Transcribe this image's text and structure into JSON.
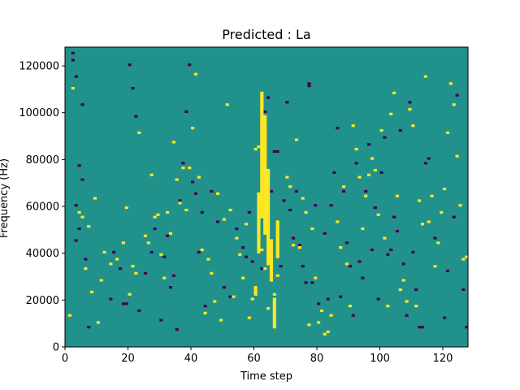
{
  "chart_data": {
    "type": "heatmap",
    "title": "Predicted : La",
    "xlabel": "Time step",
    "ylabel": "Frequency (Hz)",
    "xlim": [
      0,
      128
    ],
    "ylim": [
      0,
      128000
    ],
    "xticks": [
      0,
      20,
      40,
      60,
      80,
      100,
      120
    ],
    "yticks": [
      0,
      20000,
      40000,
      60000,
      80000,
      100000,
      120000
    ],
    "grid": false,
    "legend": "none",
    "colors": {
      "background": "#21918c",
      "low": "#440154",
      "high": "#fde725"
    },
    "rows": 128,
    "low_cells": [
      [
        2,
        125
      ],
      [
        2,
        122
      ],
      [
        3,
        115
      ],
      [
        5,
        103
      ],
      [
        4,
        77
      ],
      [
        5,
        71
      ],
      [
        3,
        60
      ],
      [
        4,
        50
      ],
      [
        3,
        45
      ],
      [
        6,
        37
      ],
      [
        7,
        8
      ],
      [
        14,
        20
      ],
      [
        15,
        40
      ],
      [
        17,
        33
      ],
      [
        18,
        18
      ],
      [
        19,
        18
      ],
      [
        20,
        120
      ],
      [
        21,
        110
      ],
      [
        22,
        98
      ],
      [
        23,
        15
      ],
      [
        25,
        31
      ],
      [
        27,
        40
      ],
      [
        28,
        50
      ],
      [
        30,
        11
      ],
      [
        31,
        38
      ],
      [
        32,
        47
      ],
      [
        33,
        25
      ],
      [
        34,
        30
      ],
      [
        35,
        7
      ],
      [
        36,
        62
      ],
      [
        37,
        78
      ],
      [
        38,
        100
      ],
      [
        39,
        120
      ],
      [
        40,
        70
      ],
      [
        41,
        65
      ],
      [
        42,
        40
      ],
      [
        43,
        57
      ],
      [
        44,
        17
      ],
      [
        46,
        66
      ],
      [
        48,
        53
      ],
      [
        50,
        25
      ],
      [
        52,
        21
      ],
      [
        54,
        50
      ],
      [
        56,
        42
      ],
      [
        57,
        38
      ],
      [
        58,
        57
      ],
      [
        59,
        36
      ],
      [
        60,
        24
      ],
      [
        62,
        33
      ],
      [
        63,
        100
      ],
      [
        64,
        106
      ],
      [
        65,
        66
      ],
      [
        66,
        83
      ],
      [
        67,
        83
      ],
      [
        68,
        34
      ],
      [
        69,
        62
      ],
      [
        70,
        104
      ],
      [
        71,
        58
      ],
      [
        72,
        46
      ],
      [
        73,
        66
      ],
      [
        74,
        43
      ],
      [
        75,
        34
      ],
      [
        76,
        27
      ],
      [
        77,
        111
      ],
      [
        77,
        112
      ],
      [
        78,
        27
      ],
      [
        79,
        60
      ],
      [
        80,
        18
      ],
      [
        81,
        15
      ],
      [
        82,
        48
      ],
      [
        83,
        20
      ],
      [
        84,
        60
      ],
      [
        85,
        74
      ],
      [
        86,
        93
      ],
      [
        87,
        21
      ],
      [
        88,
        66
      ],
      [
        89,
        44
      ],
      [
        90,
        34
      ],
      [
        91,
        13
      ],
      [
        92,
        78
      ],
      [
        93,
        36
      ],
      [
        94,
        29
      ],
      [
        95,
        66
      ],
      [
        96,
        86
      ],
      [
        97,
        41
      ],
      [
        98,
        59
      ],
      [
        99,
        20
      ],
      [
        100,
        74
      ],
      [
        101,
        89
      ],
      [
        102,
        39
      ],
      [
        103,
        41
      ],
      [
        104,
        55
      ],
      [
        105,
        49
      ],
      [
        106,
        92
      ],
      [
        107,
        35
      ],
      [
        108,
        13
      ],
      [
        109,
        104
      ],
      [
        110,
        40
      ],
      [
        111,
        24
      ],
      [
        112,
        8
      ],
      [
        113,
        8
      ],
      [
        114,
        78
      ],
      [
        115,
        80
      ],
      [
        117,
        46
      ],
      [
        120,
        12
      ],
      [
        121,
        32
      ],
      [
        123,
        55
      ],
      [
        124,
        107
      ],
      [
        126,
        24
      ],
      [
        127,
        8
      ]
    ],
    "high_cells": [
      [
        1,
        13
      ],
      [
        2,
        110
      ],
      [
        4,
        57
      ],
      [
        5,
        55
      ],
      [
        6,
        33
      ],
      [
        7,
        51
      ],
      [
        8,
        23
      ],
      [
        9,
        63
      ],
      [
        10,
        10
      ],
      [
        11,
        28
      ],
      [
        12,
        40
      ],
      [
        14,
        35
      ],
      [
        16,
        37
      ],
      [
        18,
        44
      ],
      [
        19,
        59
      ],
      [
        20,
        22
      ],
      [
        21,
        34
      ],
      [
        22,
        31
      ],
      [
        23,
        91
      ],
      [
        25,
        47
      ],
      [
        26,
        44
      ],
      [
        27,
        73
      ],
      [
        28,
        55
      ],
      [
        29,
        56
      ],
      [
        30,
        39
      ],
      [
        31,
        29
      ],
      [
        32,
        57
      ],
      [
        33,
        48
      ],
      [
        34,
        87
      ],
      [
        35,
        71
      ],
      [
        36,
        61
      ],
      [
        37,
        76
      ],
      [
        38,
        58
      ],
      [
        39,
        76
      ],
      [
        40,
        93
      ],
      [
        41,
        116
      ],
      [
        42,
        72
      ],
      [
        43,
        41
      ],
      [
        44,
        14
      ],
      [
        45,
        37
      ],
      [
        46,
        31
      ],
      [
        47,
        19
      ],
      [
        48,
        65
      ],
      [
        49,
        11
      ],
      [
        50,
        54
      ],
      [
        51,
        103
      ],
      [
        52,
        58
      ],
      [
        53,
        21
      ],
      [
        54,
        46
      ],
      [
        55,
        39
      ],
      [
        56,
        29
      ],
      [
        57,
        52
      ],
      [
        58,
        12
      ],
      [
        59,
        20
      ],
      [
        60,
        84
      ],
      [
        61,
        85
      ],
      [
        62,
        41
      ],
      [
        63,
        33
      ],
      [
        64,
        16
      ],
      [
        65,
        28
      ],
      [
        66,
        22
      ],
      [
        67,
        30
      ],
      [
        70,
        72
      ],
      [
        71,
        68
      ],
      [
        72,
        43
      ],
      [
        73,
        88
      ],
      [
        74,
        42
      ],
      [
        75,
        63
      ],
      [
        76,
        57
      ],
      [
        77,
        9
      ],
      [
        78,
        50
      ],
      [
        79,
        29
      ],
      [
        80,
        10
      ],
      [
        81,
        15
      ],
      [
        82,
        5
      ],
      [
        83,
        6
      ],
      [
        84,
        13
      ],
      [
        86,
        53
      ],
      [
        87,
        42
      ],
      [
        88,
        68
      ],
      [
        89,
        35
      ],
      [
        90,
        17
      ],
      [
        91,
        94
      ],
      [
        92,
        84
      ],
      [
        93,
        72
      ],
      [
        94,
        50
      ],
      [
        95,
        64
      ],
      [
        96,
        73
      ],
      [
        97,
        80
      ],
      [
        98,
        75
      ],
      [
        99,
        56
      ],
      [
        100,
        92
      ],
      [
        101,
        46
      ],
      [
        102,
        17
      ],
      [
        103,
        99
      ],
      [
        104,
        108
      ],
      [
        105,
        64
      ],
      [
        106,
        24
      ],
      [
        107,
        28
      ],
      [
        108,
        19
      ],
      [
        109,
        101
      ],
      [
        110,
        94
      ],
      [
        111,
        17
      ],
      [
        112,
        62
      ],
      [
        113,
        52
      ],
      [
        114,
        115
      ],
      [
        115,
        53
      ],
      [
        116,
        64
      ],
      [
        117,
        34
      ],
      [
        118,
        44
      ],
      [
        119,
        57
      ],
      [
        120,
        67
      ],
      [
        121,
        91
      ],
      [
        122,
        112
      ],
      [
        123,
        103
      ],
      [
        124,
        81
      ],
      [
        125,
        60
      ],
      [
        126,
        37
      ],
      [
        127,
        38
      ],
      [
        60,
        22
      ],
      [
        60,
        23
      ],
      [
        60,
        24
      ],
      [
        60,
        25
      ],
      [
        61,
        40
      ],
      [
        61,
        41
      ],
      [
        61,
        42
      ],
      [
        61,
        43
      ],
      [
        61,
        44
      ],
      [
        61,
        45
      ],
      [
        61,
        46
      ],
      [
        61,
        47
      ],
      [
        61,
        48
      ],
      [
        61,
        49
      ],
      [
        61,
        50
      ],
      [
        61,
        51
      ],
      [
        61,
        52
      ],
      [
        61,
        53
      ],
      [
        61,
        54
      ],
      [
        61,
        55
      ],
      [
        61,
        56
      ],
      [
        61,
        57
      ],
      [
        61,
        58
      ],
      [
        61,
        59
      ],
      [
        61,
        60
      ],
      [
        61,
        61
      ],
      [
        61,
        62
      ],
      [
        61,
        63
      ],
      [
        61,
        64
      ],
      [
        61,
        65
      ],
      [
        62,
        55
      ],
      [
        62,
        56
      ],
      [
        62,
        57
      ],
      [
        62,
        58
      ],
      [
        62,
        59
      ],
      [
        62,
        60
      ],
      [
        62,
        61
      ],
      [
        62,
        62
      ],
      [
        62,
        63
      ],
      [
        62,
        64
      ],
      [
        62,
        65
      ],
      [
        62,
        66
      ],
      [
        62,
        67
      ],
      [
        62,
        68
      ],
      [
        62,
        69
      ],
      [
        62,
        70
      ],
      [
        62,
        71
      ],
      [
        62,
        72
      ],
      [
        62,
        73
      ],
      [
        62,
        74
      ],
      [
        62,
        75
      ],
      [
        62,
        76
      ],
      [
        62,
        77
      ],
      [
        62,
        78
      ],
      [
        62,
        79
      ],
      [
        62,
        80
      ],
      [
        62,
        81
      ],
      [
        62,
        82
      ],
      [
        62,
        83
      ],
      [
        62,
        84
      ],
      [
        62,
        85
      ],
      [
        62,
        86
      ],
      [
        62,
        87
      ],
      [
        62,
        88
      ],
      [
        62,
        89
      ],
      [
        62,
        90
      ],
      [
        62,
        91
      ],
      [
        62,
        92
      ],
      [
        62,
        93
      ],
      [
        62,
        94
      ],
      [
        62,
        95
      ],
      [
        62,
        96
      ],
      [
        62,
        97
      ],
      [
        62,
        98
      ],
      [
        62,
        99
      ],
      [
        62,
        100
      ],
      [
        62,
        101
      ],
      [
        62,
        102
      ],
      [
        62,
        103
      ],
      [
        62,
        104
      ],
      [
        62,
        105
      ],
      [
        62,
        106
      ],
      [
        62,
        107
      ],
      [
        62,
        108
      ],
      [
        63,
        48
      ],
      [
        63,
        49
      ],
      [
        63,
        50
      ],
      [
        63,
        51
      ],
      [
        63,
        52
      ],
      [
        63,
        53
      ],
      [
        63,
        54
      ],
      [
        63,
        55
      ],
      [
        63,
        56
      ],
      [
        63,
        57
      ],
      [
        63,
        58
      ],
      [
        63,
        59
      ],
      [
        63,
        60
      ],
      [
        63,
        61
      ],
      [
        63,
        62
      ],
      [
        63,
        63
      ],
      [
        63,
        64
      ],
      [
        63,
        65
      ],
      [
        63,
        66
      ],
      [
        63,
        67
      ],
      [
        63,
        68
      ],
      [
        63,
        69
      ],
      [
        63,
        70
      ],
      [
        63,
        71
      ],
      [
        63,
        72
      ],
      [
        63,
        73
      ],
      [
        63,
        74
      ],
      [
        63,
        75
      ],
      [
        63,
        76
      ],
      [
        63,
        77
      ],
      [
        63,
        78
      ],
      [
        63,
        79
      ],
      [
        63,
        80
      ],
      [
        63,
        81
      ],
      [
        63,
        82
      ],
      [
        63,
        83
      ],
      [
        63,
        84
      ],
      [
        63,
        85
      ],
      [
        63,
        86
      ],
      [
        63,
        87
      ],
      [
        63,
        88
      ],
      [
        63,
        89
      ],
      [
        63,
        90
      ],
      [
        63,
        91
      ],
      [
        63,
        92
      ],
      [
        63,
        93
      ],
      [
        63,
        94
      ],
      [
        63,
        95
      ],
      [
        63,
        96
      ],
      [
        63,
        97
      ],
      [
        63,
        98
      ],
      [
        64,
        35
      ],
      [
        64,
        36
      ],
      [
        64,
        37
      ],
      [
        64,
        38
      ],
      [
        64,
        39
      ],
      [
        64,
        40
      ],
      [
        64,
        41
      ],
      [
        64,
        42
      ],
      [
        64,
        43
      ],
      [
        64,
        44
      ],
      [
        64,
        45
      ],
      [
        64,
        46
      ],
      [
        64,
        47
      ],
      [
        64,
        48
      ],
      [
        64,
        49
      ],
      [
        64,
        50
      ],
      [
        64,
        51
      ],
      [
        64,
        52
      ],
      [
        64,
        53
      ],
      [
        64,
        54
      ],
      [
        64,
        55
      ],
      [
        64,
        56
      ],
      [
        64,
        57
      ],
      [
        64,
        58
      ],
      [
        64,
        59
      ],
      [
        64,
        60
      ],
      [
        64,
        61
      ],
      [
        64,
        62
      ],
      [
        64,
        63
      ],
      [
        64,
        64
      ],
      [
        64,
        65
      ],
      [
        64,
        66
      ],
      [
        64,
        67
      ],
      [
        64,
        68
      ],
      [
        64,
        69
      ],
      [
        64,
        70
      ],
      [
        64,
        71
      ],
      [
        64,
        72
      ],
      [
        64,
        73
      ],
      [
        64,
        74
      ],
      [
        64,
        75
      ],
      [
        65,
        28
      ],
      [
        65,
        29
      ],
      [
        65,
        30
      ],
      [
        65,
        31
      ],
      [
        65,
        32
      ],
      [
        65,
        33
      ],
      [
        65,
        34
      ],
      [
        65,
        35
      ],
      [
        65,
        36
      ],
      [
        65,
        37
      ],
      [
        65,
        38
      ],
      [
        65,
        39
      ],
      [
        65,
        40
      ],
      [
        65,
        41
      ],
      [
        65,
        42
      ],
      [
        65,
        43
      ],
      [
        65,
        44
      ],
      [
        65,
        45
      ],
      [
        66,
        8
      ],
      [
        66,
        9
      ],
      [
        66,
        10
      ],
      [
        66,
        11
      ],
      [
        66,
        12
      ],
      [
        66,
        13
      ],
      [
        66,
        14
      ],
      [
        66,
        15
      ],
      [
        66,
        16
      ],
      [
        66,
        17
      ],
      [
        66,
        18
      ],
      [
        66,
        19
      ],
      [
        66,
        20
      ],
      [
        67,
        38
      ],
      [
        67,
        39
      ],
      [
        67,
        40
      ],
      [
        67,
        41
      ],
      [
        67,
        42
      ],
      [
        67,
        43
      ],
      [
        67,
        44
      ],
      [
        67,
        45
      ],
      [
        67,
        46
      ],
      [
        67,
        47
      ],
      [
        67,
        48
      ],
      [
        67,
        49
      ],
      [
        67,
        50
      ],
      [
        67,
        51
      ],
      [
        67,
        52
      ],
      [
        67,
        53
      ]
    ]
  }
}
